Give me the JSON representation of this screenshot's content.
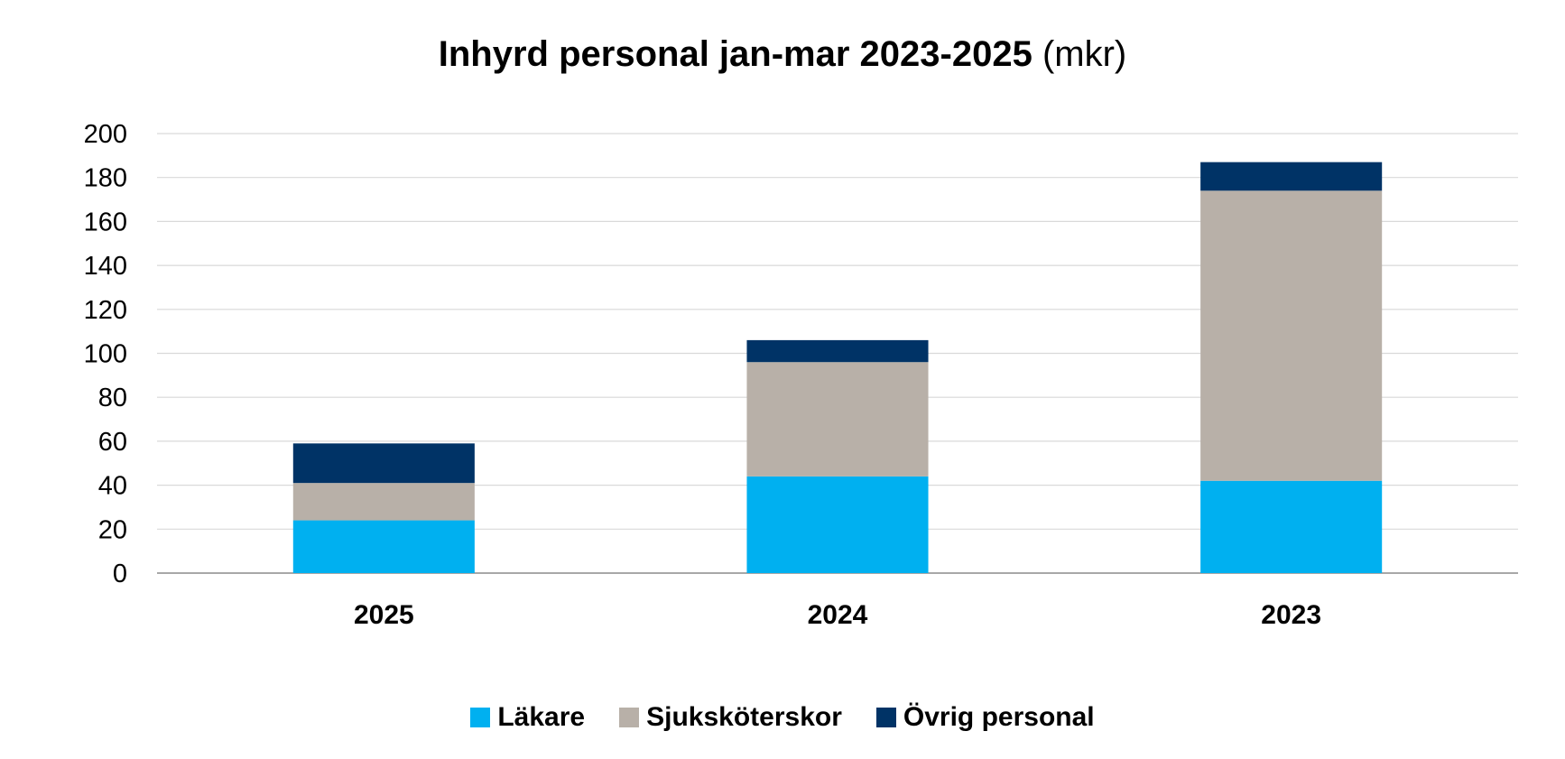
{
  "chart_data": {
    "type": "bar",
    "stacked": true,
    "title": "Inhyrd personal jan-mar 2023-2025",
    "title_unit": "(mkr)",
    "categories": [
      "2025",
      "2024",
      "2023"
    ],
    "series": [
      {
        "name": "Läkare",
        "color": "#00b0f0",
        "values": [
          24,
          44,
          42
        ]
      },
      {
        "name": "Sjuksköterskor",
        "color": "#b8b0a8",
        "values": [
          17,
          52,
          132
        ]
      },
      {
        "name": "Övrig personal",
        "color": "#003366",
        "values": [
          18,
          10,
          13
        ]
      }
    ],
    "ylim": [
      0,
      200
    ],
    "yticks": [
      "0",
      "20",
      "40",
      "60",
      "80",
      "100",
      "120",
      "140",
      "160",
      "180",
      "200"
    ],
    "xlabel": "",
    "ylabel": "",
    "grid": true,
    "legend_position": "bottom"
  }
}
